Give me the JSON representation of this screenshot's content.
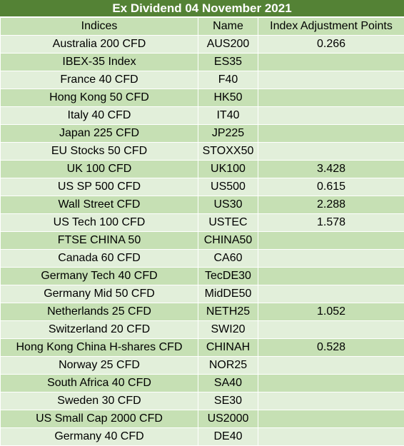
{
  "title": "Ex Dividend 04 November 2021",
  "headers": [
    "Indices",
    "Name",
    "Index Adjustment Points"
  ],
  "rows": [
    [
      "Australia 200 CFD",
      "AUS200",
      "0.266"
    ],
    [
      "IBEX-35 Index",
      "ES35",
      ""
    ],
    [
      "France 40 CFD",
      "F40",
      ""
    ],
    [
      "Hong Kong 50 CFD",
      "HK50",
      ""
    ],
    [
      "Italy 40 CFD",
      "IT40",
      ""
    ],
    [
      "Japan 225 CFD",
      "JP225",
      ""
    ],
    [
      "EU Stocks 50 CFD",
      "STOXX50",
      ""
    ],
    [
      "UK 100 CFD",
      "UK100",
      "3.428"
    ],
    [
      "US SP 500 CFD",
      "US500",
      "0.615"
    ],
    [
      "Wall Street CFD",
      "US30",
      "2.288"
    ],
    [
      "US Tech 100 CFD",
      "USTEC",
      "1.578"
    ],
    [
      "FTSE CHINA 50",
      "CHINA50",
      ""
    ],
    [
      "Canada 60 CFD",
      "CA60",
      ""
    ],
    [
      "Germany Tech 40 CFD",
      "TecDE30",
      ""
    ],
    [
      "Germany Mid 50 CFD",
      "MidDE50",
      ""
    ],
    [
      "Netherlands 25 CFD",
      "NETH25",
      "1.052"
    ],
    [
      "Switzerland 20 CFD",
      "SWI20",
      ""
    ],
    [
      "Hong Kong China H-shares CFD",
      "CHINAH",
      "0.528"
    ],
    [
      "Norway 25 CFD",
      "NOR25",
      ""
    ],
    [
      "South Africa 40 CFD",
      "SA40",
      ""
    ],
    [
      "Sweden 30 CFD",
      "SE30",
      ""
    ],
    [
      "US Small Cap 2000 CFD",
      "US2000",
      ""
    ],
    [
      "Germany 40 CFD",
      "DE40",
      ""
    ]
  ]
}
